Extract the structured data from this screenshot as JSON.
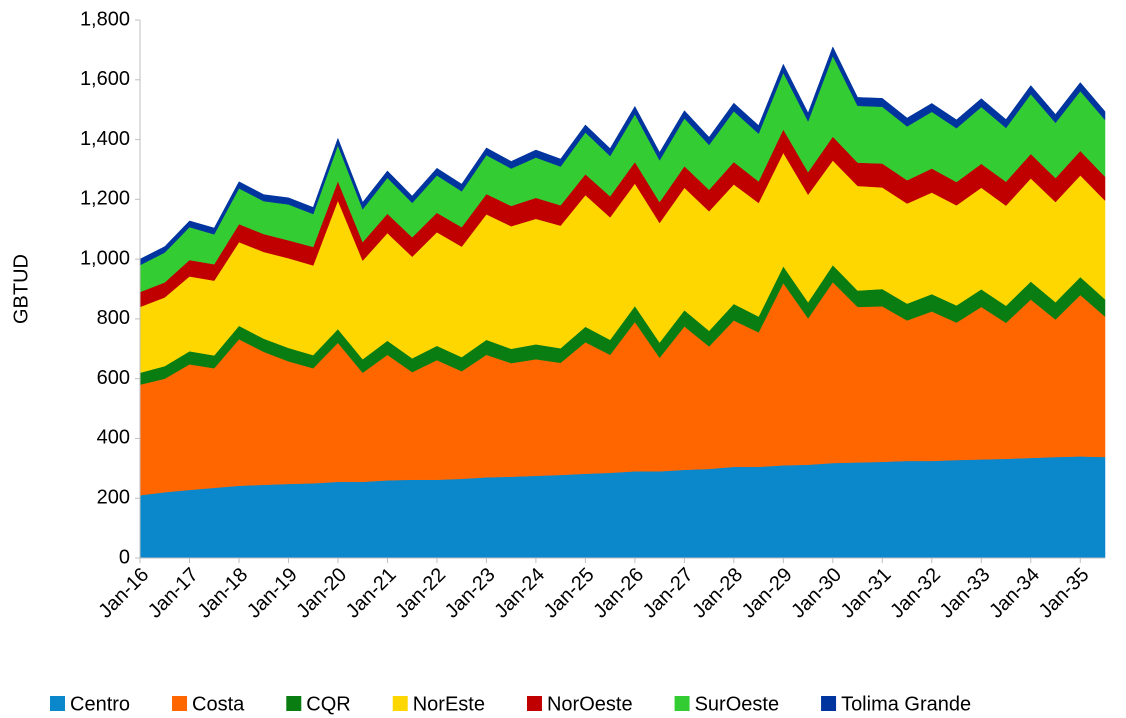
{
  "chart_data": {
    "type": "stacked_area",
    "y_label": "GBTUD",
    "categories": [
      "Jan-16",
      null,
      "Jan-17",
      null,
      "Jan-18",
      null,
      "Jan-19",
      null,
      "Jan-20",
      null,
      "Jan-21",
      null,
      "Jan-22",
      null,
      "Jan-23",
      null,
      "Jan-24",
      null,
      "Jan-25",
      null,
      "Jan-26",
      null,
      "Jan-27",
      null,
      "Jan-28",
      null,
      "Jan-29",
      null,
      "Jan-30",
      null,
      "Jan-31",
      null,
      "Jan-32",
      null,
      "Jan-33",
      null,
      "Jan-34",
      null,
      "Jan-35",
      null
    ],
    "ylim": [
      0,
      1800
    ],
    "yticks": [
      0,
      200,
      400,
      600,
      800,
      {
        "value": 1000,
        "label": "1,000"
      },
      {
        "value": 1200,
        "label": "1,200"
      },
      {
        "value": 1400,
        "label": "1,400"
      },
      {
        "value": 1600,
        "label": "1,600"
      },
      {
        "value": 1800,
        "label": "1,800"
      }
    ],
    "grid": false,
    "legend": "bottom",
    "series": [
      {
        "name": "Centro",
        "color": "#0b87cc",
        "values": [
          210,
          220,
          228,
          235,
          242,
          245,
          248,
          250,
          255,
          255,
          260,
          262,
          262,
          265,
          270,
          272,
          275,
          278,
          282,
          285,
          290,
          290,
          295,
          298,
          305,
          305,
          310,
          312,
          318,
          320,
          322,
          325,
          325,
          328,
          330,
          332,
          335,
          338,
          340,
          338
        ]
      },
      {
        "name": "Costa",
        "color": "#ff6600",
        "values": [
          370,
          380,
          420,
          400,
          490,
          445,
          410,
          385,
          465,
          365,
          420,
          360,
          400,
          360,
          410,
          380,
          390,
          375,
          440,
          395,
          500,
          380,
          480,
          410,
          490,
          450,
          610,
          490,
          605,
          520,
          520,
          470,
          500,
          460,
          510,
          455,
          530,
          460,
          540,
          470
        ]
      },
      {
        "name": "CQR",
        "color": "#0a7d12",
        "values": [
          40,
          42,
          44,
          43,
          45,
          44,
          45,
          44,
          46,
          45,
          47,
          46,
          48,
          47,
          50,
          48,
          50,
          49,
          52,
          50,
          53,
          51,
          54,
          52,
          55,
          53,
          56,
          54,
          57,
          55,
          58,
          56,
          58,
          57,
          59,
          57,
          60,
          58,
          60,
          58
        ]
      },
      {
        "name": "NorEste",
        "color": "#ffd700",
        "values": [
          220,
          230,
          250,
          250,
          280,
          290,
          300,
          300,
          430,
          330,
          360,
          340,
          380,
          370,
          420,
          410,
          420,
          410,
          440,
          410,
          410,
          400,
          410,
          400,
          400,
          380,
          380,
          360,
          350,
          350,
          340,
          335,
          340,
          335,
          340,
          335,
          345,
          335,
          340,
          330
        ]
      },
      {
        "name": "NorOeste",
        "color": "#c00000",
        "values": [
          50,
          50,
          55,
          55,
          60,
          60,
          60,
          62,
          65,
          62,
          65,
          65,
          65,
          65,
          68,
          68,
          70,
          68,
          70,
          70,
          72,
          70,
          72,
          72,
          75,
          72,
          78,
          75,
          80,
          78,
          80,
          78,
          80,
          78,
          80,
          80,
          82,
          80,
          82,
          80
        ]
      },
      {
        "name": "SurOeste",
        "color": "#33cc33",
        "values": [
          90,
          100,
          110,
          100,
          120,
          110,
          120,
          110,
          120,
          110,
          120,
          115,
          125,
          120,
          130,
          125,
          135,
          130,
          140,
          135,
          160,
          140,
          160,
          150,
          170,
          160,
          190,
          170,
          270,
          190,
          190,
          180,
          190,
          180,
          190,
          180,
          200,
          185,
          200,
          190
        ]
      },
      {
        "name": "Tolima Grande",
        "color": "#00349e",
        "values": [
          20,
          20,
          21,
          21,
          22,
          22,
          22,
          22,
          23,
          23,
          23,
          23,
          24,
          24,
          24,
          24,
          25,
          25,
          25,
          25,
          26,
          26,
          26,
          26,
          27,
          27,
          28,
          28,
          30,
          28,
          28,
          28,
          28,
          28,
          28,
          28,
          29,
          28,
          29,
          28
        ]
      }
    ]
  }
}
